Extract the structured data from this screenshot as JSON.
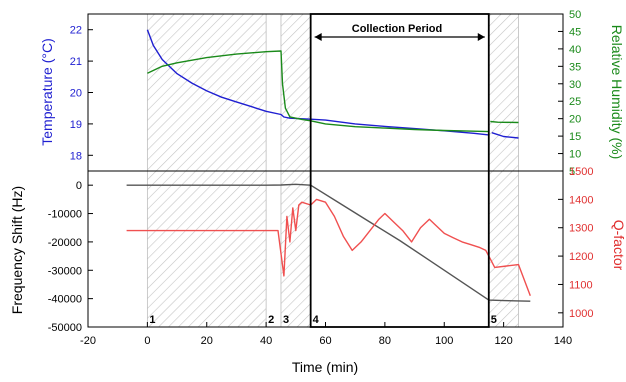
{
  "chart_data": {
    "type": "line",
    "x_axis": {
      "label": "Time (min)",
      "range": [
        -20,
        140
      ],
      "ticks": [
        -20,
        0,
        20,
        40,
        60,
        80,
        100,
        120,
        140
      ]
    },
    "collection_period": {
      "label": "Collection Period",
      "x_start": 55,
      "x_end": 115
    },
    "stage_markers": [
      {
        "label": "1",
        "x": 0
      },
      {
        "label": "2",
        "x": 40
      },
      {
        "label": "3",
        "x": 45
      },
      {
        "label": "4",
        "x": 55
      },
      {
        "label": "5",
        "x": 115
      }
    ],
    "hatched_regions": [
      [
        0,
        40
      ],
      [
        45,
        55
      ],
      [
        115,
        125
      ]
    ],
    "top_panel": {
      "y_left": {
        "label": "Temperature (°C)",
        "color": "#1f1fd1",
        "range": [
          17.5,
          22.5
        ],
        "ticks": [
          18,
          19,
          20,
          21,
          22
        ]
      },
      "y_right": {
        "label": "Relative Humidity (%)",
        "color": "#1a8a1a",
        "range": [
          5,
          50
        ],
        "ticks": [
          5,
          10,
          15,
          20,
          25,
          30,
          35,
          40,
          45,
          50
        ]
      },
      "series": [
        {
          "axis": "left",
          "color": "#1f1fd1",
          "segments": [
            [
              [
                0,
                22.0
              ],
              [
                2,
                21.5
              ],
              [
                5,
                21.05
              ],
              [
                10,
                20.6
              ],
              [
                15,
                20.3
              ],
              [
                20,
                20.05
              ],
              [
                25,
                19.85
              ],
              [
                30,
                19.7
              ],
              [
                35,
                19.55
              ],
              [
                40,
                19.4
              ],
              [
                45,
                19.3
              ],
              [
                46,
                19.22
              ],
              [
                48,
                19.18
              ],
              [
                55,
                19.15
              ],
              [
                60,
                19.12
              ],
              [
                70,
                19.0
              ],
              [
                80,
                18.92
              ],
              [
                90,
                18.85
              ],
              [
                100,
                18.78
              ],
              [
                110,
                18.7
              ],
              [
                115,
                18.65
              ]
            ],
            [
              [
                116,
                18.72
              ],
              [
                120,
                18.6
              ],
              [
                125,
                18.55
              ]
            ]
          ]
        },
        {
          "axis": "right",
          "color": "#1a8a1a",
          "segments": [
            [
              [
                0,
                33.0
              ],
              [
                5,
                35.0
              ],
              [
                10,
                36.0
              ],
              [
                20,
                37.5
              ],
              [
                30,
                38.5
              ],
              [
                40,
                39.2
              ],
              [
                45,
                39.4
              ],
              [
                45.5,
                30.0
              ],
              [
                46.5,
                23.0
              ],
              [
                48,
                20.5
              ],
              [
                52,
                19.8
              ],
              [
                55,
                19.4
              ],
              [
                60,
                18.5
              ],
              [
                70,
                17.7
              ],
              [
                80,
                17.3
              ],
              [
                90,
                16.9
              ],
              [
                100,
                16.6
              ],
              [
                110,
                16.4
              ],
              [
                115,
                16.3
              ]
            ],
            [
              [
                115.5,
                19.2
              ],
              [
                118,
                19.0
              ],
              [
                125,
                18.9
              ]
            ]
          ]
        }
      ]
    },
    "bottom_panel": {
      "y_left": {
        "label": "Frequency Shift (Hz)",
        "color": "#000000",
        "range": [
          -50000,
          5000
        ],
        "ticks": [
          -50000,
          -40000,
          -30000,
          -20000,
          -10000,
          0
        ]
      },
      "y_right": {
        "label": "Q-factor",
        "color": "#e03030",
        "range": [
          950,
          1500
        ],
        "ticks": [
          1000,
          1100,
          1200,
          1300,
          1400,
          1500
        ]
      },
      "series": [
        {
          "axis": "left",
          "color": "#555555",
          "segments": [
            [
              [
                -7,
                0
              ],
              [
                20,
                0
              ],
              [
                40,
                0
              ],
              [
                45,
                50
              ],
              [
                50,
                300
              ],
              [
                55,
                0
              ],
              [
                65,
                -6500
              ],
              [
                75,
                -13000
              ],
              [
                85,
                -19500
              ],
              [
                95,
                -26500
              ],
              [
                105,
                -33500
              ],
              [
                115,
                -40500
              ],
              [
                120,
                -40700
              ],
              [
                125,
                -40800
              ],
              [
                129,
                -40900
              ]
            ]
          ]
        },
        {
          "axis": "right",
          "color": "#f05050",
          "segments": [
            [
              [
                -7,
                1290
              ],
              [
                10,
                1290
              ],
              [
                30,
                1290
              ],
              [
                44,
                1290
              ],
              [
                46,
                1130
              ],
              [
                47,
                1340
              ],
              [
                48,
                1250
              ],
              [
                49,
                1370
              ],
              [
                50,
                1290
              ],
              [
                51,
                1380
              ],
              [
                52,
                1390
              ],
              [
                55,
                1380
              ],
              [
                57,
                1400
              ],
              [
                60,
                1390
              ],
              [
                63,
                1340
              ],
              [
                66,
                1270
              ],
              [
                69,
                1220
              ],
              [
                72,
                1250
              ],
              [
                75,
                1290
              ],
              [
                78,
                1330
              ],
              [
                80,
                1350
              ],
              [
                83,
                1320
              ],
              [
                86,
                1290
              ],
              [
                89,
                1250
              ],
              [
                92,
                1300
              ],
              [
                95,
                1330
              ],
              [
                97,
                1310
              ],
              [
                100,
                1280
              ],
              [
                103,
                1265
              ],
              [
                106,
                1250
              ],
              [
                109,
                1240
              ],
              [
                112,
                1230
              ],
              [
                114,
                1220
              ],
              [
                115,
                1200
              ],
              [
                117,
                1160
              ],
              [
                121,
                1165
              ],
              [
                125,
                1170
              ],
              [
                129,
                1060
              ]
            ]
          ]
        }
      ]
    }
  }
}
